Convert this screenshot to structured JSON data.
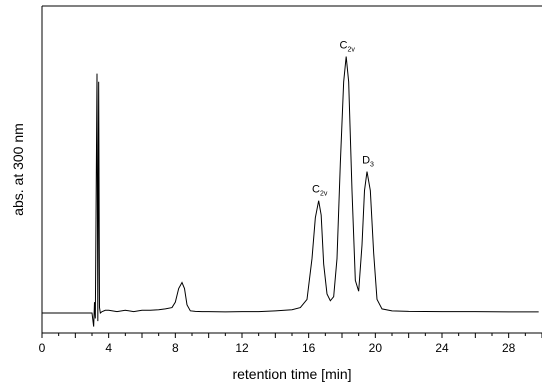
{
  "chart_data": {
    "type": "line",
    "title": "",
    "xlabel": "retention time [min]",
    "ylabel": "abs. at 300 nm",
    "xlim": [
      0,
      30
    ],
    "ylim": [
      0,
      1
    ],
    "xticks": [
      0,
      4,
      8,
      12,
      16,
      20,
      24,
      28
    ],
    "yticks_shown": false,
    "grid": false,
    "legend": "none",
    "line_color": "#000000",
    "series": [
      {
        "x": [
          0,
          3.0,
          3.1,
          3.15,
          3.2,
          3.3,
          3.35,
          3.4,
          3.45,
          3.5,
          3.6,
          3.8,
          4.0,
          4.5,
          5.0,
          5.5,
          6.0,
          6.5,
          7.0,
          7.4,
          7.8,
          8.0,
          8.2,
          8.4,
          8.55,
          8.7,
          8.9,
          9.2,
          9.6,
          10.0,
          11.0,
          12.0,
          13.0,
          14.0,
          15.0,
          15.5,
          15.9,
          16.2,
          16.4,
          16.6,
          16.75,
          16.9,
          17.1,
          17.3,
          17.5,
          17.7,
          17.9,
          18.1,
          18.25,
          18.4,
          18.6,
          18.8,
          19.0,
          19.2,
          19.35,
          19.5,
          19.7,
          19.9,
          20.1,
          20.4,
          21.0,
          22.0,
          24.0,
          26.0,
          28.0,
          29.8
        ],
        "y": [
          0.0,
          0.0,
          -0.05,
          0.04,
          -0.02,
          0.88,
          -0.03,
          0.85,
          0.02,
          0.0,
          0.005,
          0.01,
          0.01,
          0.005,
          0.01,
          0.005,
          0.01,
          0.01,
          0.012,
          0.015,
          0.02,
          0.04,
          0.09,
          0.112,
          0.09,
          0.03,
          0.008,
          0.006,
          0.005,
          0.005,
          0.004,
          0.005,
          0.005,
          0.008,
          0.012,
          0.02,
          0.05,
          0.2,
          0.35,
          0.413,
          0.36,
          0.18,
          0.07,
          0.045,
          0.06,
          0.2,
          0.55,
          0.85,
          0.943,
          0.85,
          0.45,
          0.12,
          0.08,
          0.25,
          0.45,
          0.52,
          0.45,
          0.22,
          0.05,
          0.015,
          0.008,
          0.006,
          0.005,
          0.005,
          0.004,
          0.004
        ]
      }
    ],
    "annotations": [
      {
        "main": "C",
        "sub": "2v",
        "x": 16.6,
        "y": 0.413
      },
      {
        "main": "C",
        "sub": "2v",
        "x": 18.25,
        "y": 0.943
      },
      {
        "main": "D",
        "sub": "3",
        "x": 19.5,
        "y": 0.52
      }
    ]
  }
}
